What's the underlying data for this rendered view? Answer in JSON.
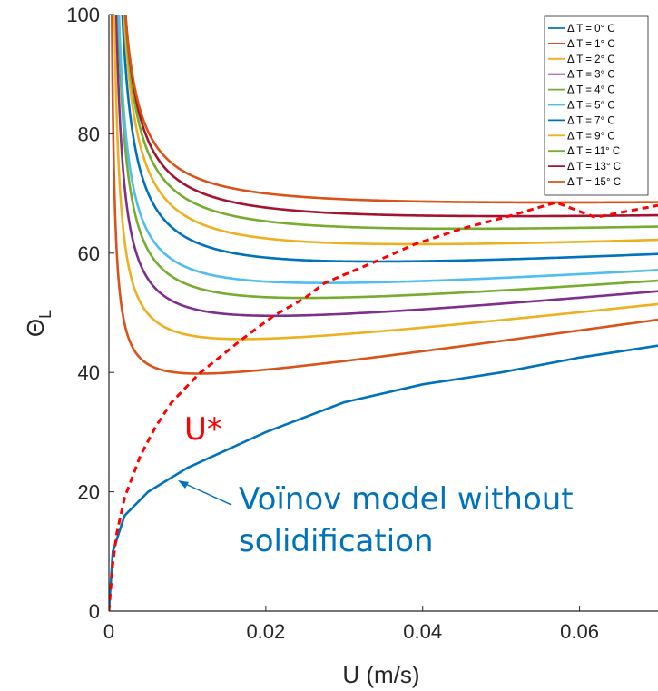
{
  "chart_data": {
    "type": "line",
    "title": "",
    "xlabel": "U (m/s)",
    "ylabel": "Θ",
    "ylabel_subscript": "L",
    "xlim": [
      0,
      0.07
    ],
    "ylim": [
      0,
      100
    ],
    "xticks": [
      0,
      0.02,
      0.04,
      0.06
    ],
    "xtick_labels": [
      "0",
      "0.02",
      "0.04",
      "0.06"
    ],
    "yticks": [
      0,
      20,
      40,
      60,
      80,
      100
    ],
    "ytick_labels": [
      "0",
      "20",
      "40",
      "60",
      "80",
      "100"
    ],
    "grid": false,
    "legend_position": "top-right",
    "series": [
      {
        "name": "Δ T = 0° C",
        "color": "#0072BD",
        "min_x": 0.0,
        "min_y": 0,
        "slope": 0,
        "x": [
          0,
          0.0005,
          0.002,
          0.005,
          0.01,
          0.02,
          0.03,
          0.04,
          0.05,
          0.06,
          0.07
        ],
        "y": [
          0,
          10,
          16,
          20,
          24,
          30,
          35,
          38,
          40,
          42.5,
          44.5
        ]
      },
      {
        "name": "Δ T = 1° C",
        "color": "#D95319",
        "min_x": 0.0115,
        "min_y": 39.8,
        "slope": 185
      },
      {
        "name": "Δ T = 2° C",
        "color": "#EDB120",
        "min_x": 0.017,
        "min_y": 45.6,
        "slope": 146
      },
      {
        "name": "Δ T = 3° C",
        "color": "#7E2F8E",
        "min_x": 0.021,
        "min_y": 49.5,
        "slope": 120
      },
      {
        "name": "Δ T = 4° C",
        "color": "#77AC30",
        "min_x": 0.025,
        "min_y": 52.5,
        "slope": 100
      },
      {
        "name": "Δ T = 5° C",
        "color": "#4DBEEE",
        "min_x": 0.0275,
        "min_y": 55.0,
        "slope": 84
      },
      {
        "name": "Δ T = 7° C",
        "color": "#0072BD",
        "min_x": 0.034,
        "min_y": 58.6,
        "slope": 68
      },
      {
        "name": "Δ T = 9° C",
        "color": "#EDB120",
        "min_x": 0.039,
        "min_y": 61.5,
        "slope": 54
      },
      {
        "name": "Δ T = 11° C",
        "color": "#77AC30",
        "min_x": 0.045,
        "min_y": 64.1,
        "slope": 40
      },
      {
        "name": "Δ T = 13° C",
        "color": "#A2142F",
        "min_x": 0.051,
        "min_y": 66.2,
        "slope": 30
      },
      {
        "name": "Δ T = 15° C",
        "color": "#D95319",
        "min_x": 0.057,
        "min_y": 68.5,
        "slope": 22
      }
    ],
    "u_star": {
      "color": "#FF0000",
      "x": [
        0,
        0.0005,
        0.001,
        0.002,
        0.004,
        0.006,
        0.008,
        0.0115,
        0.017,
        0.021,
        0.025,
        0.0275,
        0.034,
        0.039,
        0.045,
        0.051,
        0.057,
        0.062,
        0.07
      ],
      "y": [
        0,
        8,
        13,
        19,
        26,
        31,
        35,
        39.8,
        45.6,
        49.5,
        52.5,
        55.0,
        58.6,
        61.5,
        64.1,
        66.2,
        68.5,
        66.0,
        68.0
      ]
    },
    "annotations": {
      "u_star_label": "U*",
      "voinov_label_line1": "Voïnov model without",
      "voinov_label_line2": "solidification"
    }
  }
}
